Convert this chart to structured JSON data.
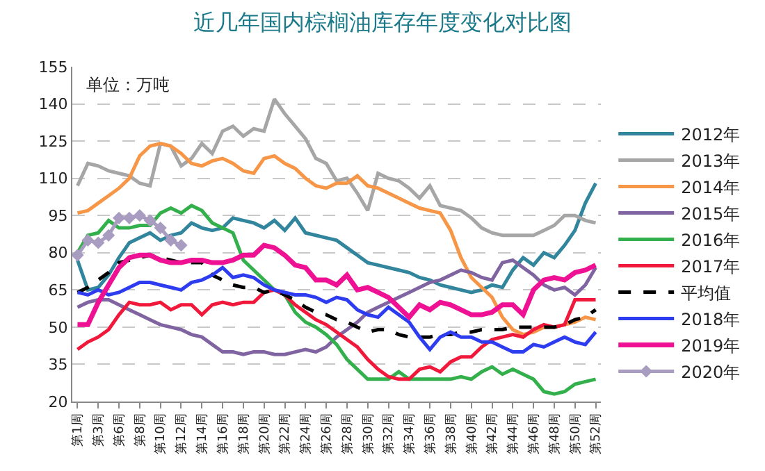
{
  "chart_data": {
    "type": "line",
    "title": "近几年国内棕榈油库存年度变化对比图",
    "annotations": [
      "单位：万吨"
    ],
    "categories": [
      "第1周",
      null,
      "第3周",
      null,
      "第6周",
      null,
      "第8周",
      null,
      "第10周",
      null,
      "第12周",
      null,
      "第14周",
      null,
      "第16周",
      null,
      "第18周",
      null,
      "第20周",
      null,
      "第22周",
      null,
      "第24周",
      null,
      "第26周",
      null,
      "第28周",
      null,
      "第30周",
      null,
      "第32周",
      null,
      "第34周",
      null,
      "第36周",
      null,
      "第38周",
      null,
      "第40周",
      null,
      "第42周",
      null,
      "第44周",
      null,
      "第46周",
      null,
      "第48周",
      null,
      "第50周",
      null,
      "第52周"
    ],
    "ylim": [
      20,
      155
    ],
    "yticks": [
      20,
      35,
      50,
      65,
      80,
      95,
      110,
      125,
      140,
      155
    ],
    "grid": "y",
    "legend": "right",
    "marker": "none",
    "line_style": "solid",
    "series": [
      {
        "name": "2012年",
        "color": "#31859c",
        "values": [
          77,
          65,
          66,
          71,
          78,
          84,
          86,
          88,
          85,
          87,
          88,
          92,
          90,
          89,
          90,
          94,
          93,
          92,
          90,
          93,
          89,
          94,
          88,
          87,
          86,
          85,
          82,
          79,
          76,
          75,
          74,
          73,
          72,
          70,
          69,
          67,
          66,
          65,
          64,
          65,
          67,
          66,
          73,
          78,
          75,
          80,
          78,
          83,
          89,
          100,
          108
        ]
      },
      {
        "name": "2013年",
        "color": "#a6a6a6",
        "values": [
          107,
          116,
          115,
          113,
          112,
          111,
          108,
          107,
          124,
          123,
          115,
          118,
          124,
          120,
          129,
          131,
          127,
          130,
          129,
          142,
          136,
          131,
          126,
          118,
          116,
          109,
          110,
          104,
          97,
          112,
          110,
          109,
          106,
          102,
          107,
          99,
          98,
          97,
          94,
          90,
          88,
          87,
          87,
          87,
          87,
          89,
          91,
          95,
          95,
          93,
          92
        ]
      },
      {
        "name": "2014年",
        "color": "#f79646",
        "values": [
          96,
          97,
          100,
          103,
          106,
          110,
          119,
          123,
          124,
          123,
          120,
          116,
          115,
          117,
          118,
          116,
          113,
          112,
          118,
          119,
          116,
          114,
          110,
          107,
          106,
          108,
          108,
          111,
          107,
          106,
          104,
          102,
          100,
          98,
          97,
          96,
          89,
          78,
          70,
          66,
          62,
          54,
          49,
          47,
          48,
          50,
          50,
          51,
          52,
          54,
          53
        ]
      },
      {
        "name": "2015年",
        "color": "#8064a2",
        "values": [
          58,
          60,
          61,
          61,
          59,
          57,
          55,
          53,
          51,
          50,
          49,
          47,
          46,
          43,
          40,
          40,
          39,
          40,
          40,
          39,
          39,
          40,
          41,
          40,
          42,
          46,
          49,
          52,
          56,
          58,
          60,
          62,
          64,
          66,
          68,
          69,
          71,
          73,
          72,
          70,
          69,
          76,
          77,
          74,
          71,
          67,
          65,
          66,
          63,
          67,
          74
        ]
      },
      {
        "name": "2016年",
        "color": "#33b04c",
        "values": [
          80,
          87,
          88,
          93,
          90,
          90,
          91,
          91,
          96,
          98,
          96,
          99,
          97,
          92,
          90,
          88,
          77,
          73,
          69,
          65,
          63,
          56,
          52,
          50,
          47,
          43,
          37,
          33,
          29,
          29,
          29,
          32,
          29,
          29,
          29,
          29,
          29,
          30,
          29,
          32,
          34,
          31,
          33,
          31,
          29,
          24,
          23,
          24,
          27,
          28,
          29
        ]
      },
      {
        "name": "2017年",
        "color": "#f0193c",
        "values": [
          41,
          44,
          46,
          49,
          55,
          60,
          59,
          59,
          60,
          57,
          59,
          59,
          55,
          59,
          60,
          59,
          60,
          60,
          64,
          65,
          63,
          59,
          56,
          53,
          51,
          48,
          45,
          42,
          37,
          33,
          30,
          29,
          29,
          33,
          34,
          32,
          36,
          38,
          38,
          42,
          45,
          46,
          47,
          46,
          49,
          51,
          50,
          51,
          61,
          61,
          61
        ]
      },
      {
        "name": "平均值",
        "color": "#000000",
        "line_style": "dashed",
        "values": [
          64,
          66,
          69,
          72,
          76,
          77,
          78,
          79,
          78,
          77,
          76,
          76,
          76,
          71,
          69,
          67,
          66,
          66,
          64,
          65,
          63,
          61,
          58,
          56,
          55,
          53,
          52,
          50,
          48,
          49,
          49,
          47,
          46,
          46,
          46,
          47,
          47,
          48,
          48,
          49,
          49,
          49,
          50,
          50,
          50,
          50,
          50,
          51,
          53,
          54,
          57
        ]
      },
      {
        "name": "2018年",
        "color": "#2e3cf0",
        "values": [
          64,
          63,
          65,
          63,
          64,
          66,
          68,
          68,
          67,
          66,
          65,
          68,
          69,
          71,
          74,
          70,
          71,
          70,
          67,
          65,
          64,
          63,
          63,
          62,
          60,
          62,
          61,
          57,
          55,
          54,
          58,
          55,
          52,
          46,
          41,
          46,
          48,
          46,
          46,
          44,
          44,
          42,
          40,
          40,
          43,
          42,
          44,
          46,
          44,
          43,
          48
        ]
      },
      {
        "name": "2019年",
        "color": "#ee1193",
        "values": [
          51,
          51,
          60,
          67,
          74,
          78,
          79,
          79,
          77,
          76,
          76,
          77,
          77,
          76,
          76,
          77,
          79,
          79,
          83,
          82,
          79,
          75,
          74,
          69,
          69,
          67,
          71,
          65,
          66,
          64,
          62,
          58,
          54,
          59,
          57,
          60,
          59,
          57,
          55,
          55,
          56,
          59,
          59,
          55,
          65,
          69,
          70,
          69,
          72,
          73,
          75
        ]
      },
      {
        "name": "2020年",
        "color": "#a89cc0",
        "marker": "diamond",
        "values": [
          79,
          85,
          84,
          87,
          94,
          94,
          95,
          93,
          90,
          85,
          83,
          null,
          null,
          null,
          null,
          null,
          null,
          null,
          null,
          null,
          null,
          null,
          null,
          null,
          null,
          null,
          null,
          null,
          null,
          null,
          null,
          null,
          null,
          null,
          null,
          null,
          null,
          null,
          null,
          null,
          null,
          null,
          null,
          null,
          null,
          null,
          null,
          null,
          null,
          null,
          null
        ]
      }
    ]
  }
}
